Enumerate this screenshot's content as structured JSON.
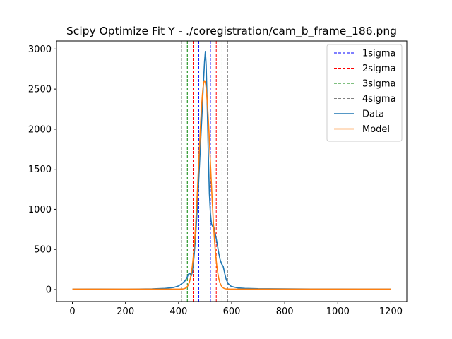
{
  "chart_data": {
    "type": "line",
    "title": "Scipy Optimize Fit Y - ./coregistration/cam_b_frame_186.png",
    "xlabel": "",
    "ylabel": "",
    "xlim": [
      -60,
      1260
    ],
    "ylim": [
      -150,
      3100
    ],
    "x_ticks": [
      0,
      200,
      400,
      600,
      800,
      1000,
      1200
    ],
    "y_ticks": [
      0,
      500,
      1000,
      1500,
      2000,
      2500,
      3000
    ],
    "grid": false,
    "legend_position": "top-right",
    "vlines": [
      {
        "name": "1sigma",
        "color": "#0000ff",
        "x": [
          476,
          520
        ]
      },
      {
        "name": "2sigma",
        "color": "#ff0000",
        "x": [
          455,
          542
        ]
      },
      {
        "name": "3sigma",
        "color": "#008000",
        "x": [
          433,
          564
        ]
      },
      {
        "name": "4sigma",
        "color": "#808080",
        "x": [
          411,
          585
        ]
      }
    ],
    "series": [
      {
        "name": "Data",
        "color": "#1f77b4",
        "points": [
          [
            0,
            5
          ],
          [
            100,
            6
          ],
          [
            200,
            4
          ],
          [
            300,
            8
          ],
          [
            350,
            15
          ],
          [
            380,
            25
          ],
          [
            400,
            45
          ],
          [
            415,
            80
          ],
          [
            425,
            110
          ],
          [
            432,
            150
          ],
          [
            437,
            190
          ],
          [
            443,
            200
          ],
          [
            448,
            170
          ],
          [
            452,
            220
          ],
          [
            458,
            400
          ],
          [
            465,
            700
          ],
          [
            472,
            1100
          ],
          [
            478,
            1500
          ],
          [
            484,
            1900
          ],
          [
            490,
            2300
          ],
          [
            494,
            2600
          ],
          [
            498,
            2850
          ],
          [
            501,
            2970
          ],
          [
            504,
            2800
          ],
          [
            508,
            2300
          ],
          [
            512,
            1700
          ],
          [
            516,
            1200
          ],
          [
            520,
            950
          ],
          [
            524,
            820
          ],
          [
            528,
            790
          ],
          [
            533,
            780
          ],
          [
            538,
            700
          ],
          [
            544,
            600
          ],
          [
            550,
            480
          ],
          [
            556,
            380
          ],
          [
            562,
            320
          ],
          [
            568,
            290
          ],
          [
            574,
            200
          ],
          [
            580,
            120
          ],
          [
            588,
            70
          ],
          [
            598,
            40
          ],
          [
            610,
            30
          ],
          [
            625,
            20
          ],
          [
            650,
            15
          ],
          [
            700,
            10
          ],
          [
            800,
            8
          ],
          [
            900,
            6
          ],
          [
            1000,
            6
          ],
          [
            1100,
            5
          ],
          [
            1200,
            5
          ]
        ]
      },
      {
        "name": "Model",
        "color": "#ff7f0e",
        "mu": 498,
        "sigma": 22,
        "amplitude": 2600,
        "offset": 5,
        "x_range": [
          0,
          1200
        ]
      }
    ]
  },
  "legend": {
    "items": [
      {
        "label": "1sigma",
        "color": "#0000ff",
        "style": "dashed"
      },
      {
        "label": "2sigma",
        "color": "#ff0000",
        "style": "dashed"
      },
      {
        "label": "3sigma",
        "color": "#008000",
        "style": "dashed"
      },
      {
        "label": "4sigma",
        "color": "#808080",
        "style": "dashed"
      },
      {
        "label": "Data",
        "color": "#1f77b4",
        "style": "solid"
      },
      {
        "label": "Model",
        "color": "#ff7f0e",
        "style": "solid"
      }
    ]
  }
}
